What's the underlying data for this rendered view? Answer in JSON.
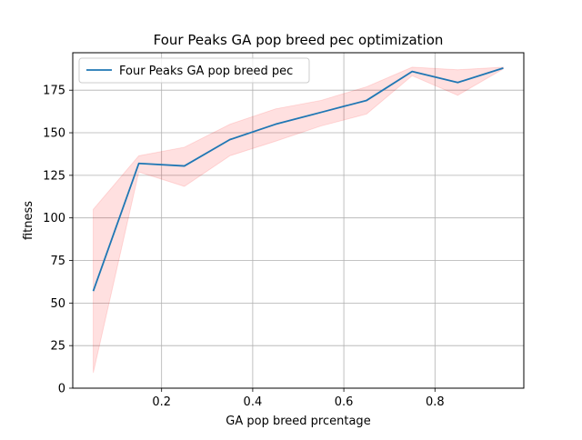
{
  "chart_data": {
    "type": "line",
    "title": "Four Peaks GA pop breed pec optimization",
    "xlabel": "GA pop breed prcentage",
    "ylabel": "fitness",
    "xlim": [
      0.005,
      0.995
    ],
    "ylim": [
      0,
      197
    ],
    "xticks": [
      0.2,
      0.4,
      0.6,
      0.8
    ],
    "xtick_labels": [
      "0.2",
      "0.4",
      "0.6",
      "0.8"
    ],
    "yticks": [
      0,
      25,
      50,
      75,
      100,
      125,
      150,
      175
    ],
    "ytick_labels": [
      "0",
      "25",
      "50",
      "75",
      "100",
      "125",
      "150",
      "175"
    ],
    "grid": true,
    "legend_position": "top-left",
    "x": [
      0.05,
      0.15,
      0.25,
      0.35,
      0.45,
      0.55,
      0.65,
      0.75,
      0.85,
      0.95
    ],
    "series": [
      {
        "name": "Four Peaks GA pop breed pec",
        "color": "#1f77b4",
        "values": [
          57,
          132,
          130.5,
          146,
          155,
          162,
          169,
          186,
          179.5,
          188
        ],
        "band_upper": [
          105,
          136.5,
          141.5,
          155,
          164,
          169,
          177,
          188.5,
          187,
          188.5
        ],
        "band_lower": [
          9,
          127,
          118.5,
          136.5,
          145,
          154,
          161,
          183.5,
          172,
          187.5
        ],
        "band_color": "#ff0000"
      }
    ]
  }
}
